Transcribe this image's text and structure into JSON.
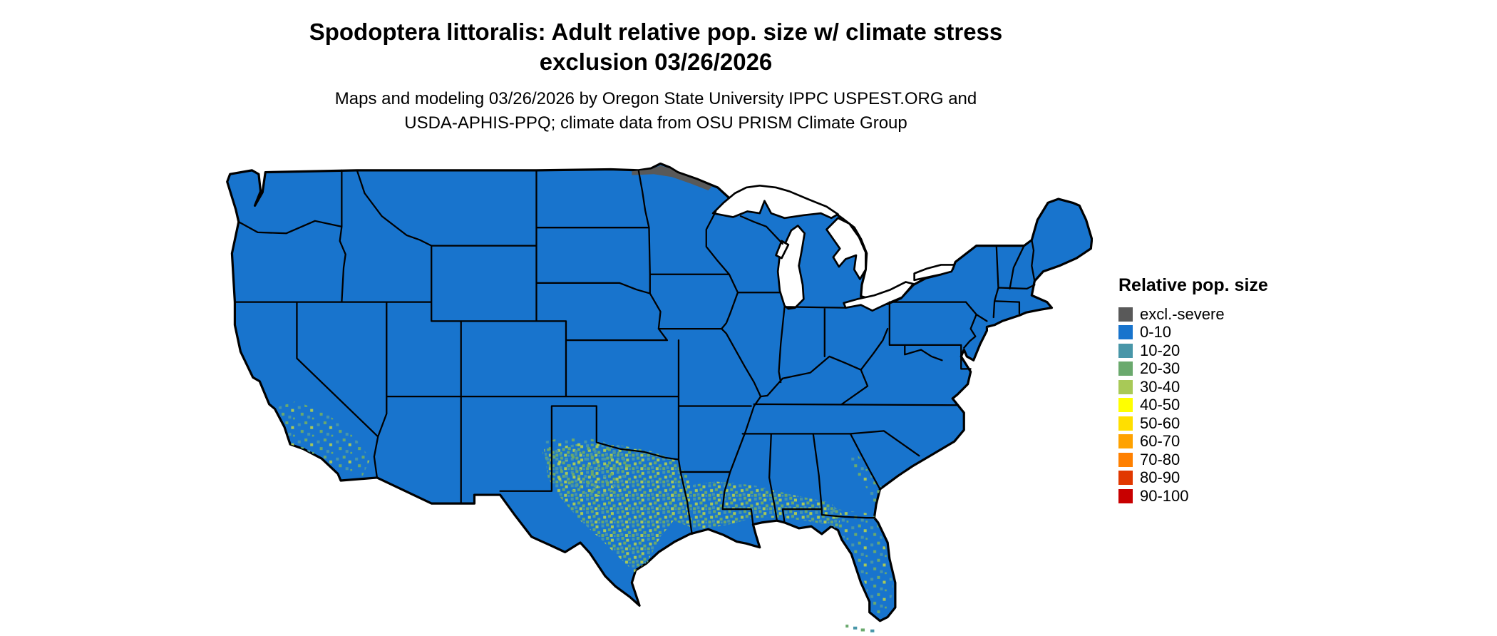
{
  "title": {
    "line1": "Spodoptera littoralis: Adult relative pop. size w/ climate stress",
    "line2": "exclusion 03/26/2026"
  },
  "subtitle": {
    "line1": "Maps and modeling 03/26/2026 by Oregon State University IPPC USPEST.ORG and",
    "line2": "USDA-APHIS-PPQ; climate data from OSU PRISM Climate Group"
  },
  "legend": {
    "title": "Relative pop. size",
    "items": [
      {
        "label": "excl.-severe",
        "color": "#595959"
      },
      {
        "label": "0-10",
        "color": "#1874cd"
      },
      {
        "label": "10-20",
        "color": "#4896a8"
      },
      {
        "label": "20-30",
        "color": "#6aa96d"
      },
      {
        "label": "30-40",
        "color": "#a8c957"
      },
      {
        "label": "40-50",
        "color": "#ffff00"
      },
      {
        "label": "50-60",
        "color": "#ffdf00"
      },
      {
        "label": "60-70",
        "color": "#ffa200"
      },
      {
        "label": "70-80",
        "color": "#ff8000"
      },
      {
        "label": "80-90",
        "color": "#e13800"
      },
      {
        "label": "90-100",
        "color": "#c80000"
      }
    ]
  },
  "map": {
    "name": "contiguous-united-states",
    "background": "#ffffff",
    "base_color": "#1874cd",
    "border_color": "#000000",
    "water_color": "#ffffff",
    "excluded_color": "#595959"
  },
  "chart_data": {
    "type": "choropleth_map",
    "region": "Contiguous United States",
    "variable": "Adult relative population size with climate stress exclusion (Spodoptera littoralis)",
    "date": "03/26/2026",
    "legend_title": "Relative pop. size",
    "classes": [
      {
        "label": "excl.-severe",
        "color": "#595959"
      },
      {
        "label": "0-10",
        "color": "#1874cd"
      },
      {
        "label": "10-20",
        "color": "#4896a8"
      },
      {
        "label": "20-30",
        "color": "#6aa96d"
      },
      {
        "label": "30-40",
        "color": "#a8c957"
      },
      {
        "label": "40-50",
        "color": "#ffff00"
      },
      {
        "label": "50-60",
        "color": "#ffdf00"
      },
      {
        "label": "60-70",
        "color": "#ffa200"
      },
      {
        "label": "70-80",
        "color": "#ff8000"
      },
      {
        "label": "80-90",
        "color": "#e13800"
      },
      {
        "label": "90-100",
        "color": "#c80000"
      }
    ],
    "observations": [
      "Most of the contiguous US is mapped in the 0-10 class (blue)",
      "A thin excl.-severe (dark gray) band runs along the northern Minnesota border",
      "Speckled 10-40 values (teal/green/yellow-green) across southern and central Texas and along the Gulf Coast through Louisiana, Mississippi, Alabama and Florida",
      "Scattered 10-30 values in southern Arizona and southern/coastal California",
      "Scattered 10-30 values along the Georgia/South Carolina coast and in the Florida Keys"
    ]
  }
}
